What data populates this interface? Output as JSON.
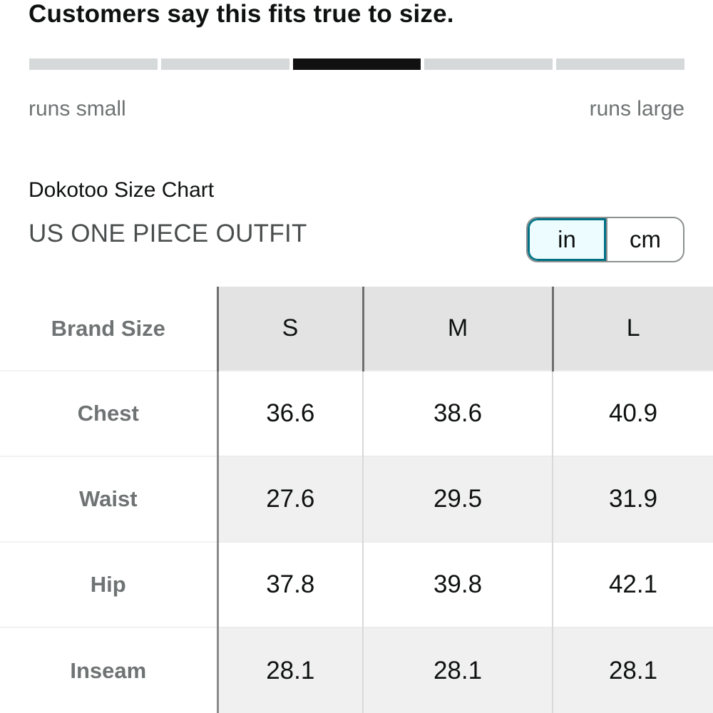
{
  "fit": {
    "headline": "Customers say this fits true to size.",
    "segments": 5,
    "active_segment": 3,
    "left_label": "runs small",
    "right_label": "runs large"
  },
  "chart": {
    "title": "Dokotoo Size Chart",
    "subtitle": "US ONE PIECE OUTFIT"
  },
  "units": {
    "options": [
      "in",
      "cm"
    ],
    "selected": "in"
  },
  "table": {
    "header_label": "Brand Size",
    "columns": [
      "S",
      "M",
      "L"
    ],
    "rows": [
      {
        "label": "Chest",
        "values": [
          "36.6",
          "38.6",
          "40.9"
        ]
      },
      {
        "label": "Waist",
        "values": [
          "27.6",
          "29.5",
          "31.9"
        ]
      },
      {
        "label": "Hip",
        "values": [
          "37.8",
          "39.8",
          "42.1"
        ]
      },
      {
        "label": "Inseam",
        "values": [
          "28.1",
          "28.1",
          "28.1"
        ]
      }
    ]
  },
  "colors": {
    "active_segment": "#111111",
    "inactive_segment": "#d5d9d9",
    "toggle_active_border": "#007185",
    "toggle_active_bg": "#edfdff",
    "header_bg": "#e3e3e3"
  }
}
